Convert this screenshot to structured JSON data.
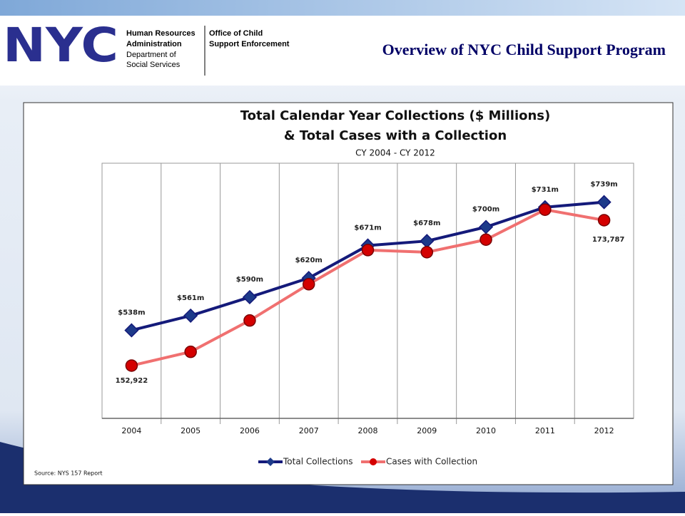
{
  "header": {
    "logo": "NYC",
    "agency": [
      "Human Resources",
      "Administration"
    ],
    "department": [
      "Department of",
      "Social Services"
    ],
    "office": [
      "Office of Child",
      "Support Enforcement"
    ],
    "title": "Overview of NYC Child Support Program"
  },
  "chart_data": {
    "type": "line",
    "title": [
      "Total Calendar Year Collections ($ Millions)",
      "& Total Cases with a Collection"
    ],
    "subtitle": "CY 2004  - CY 2012",
    "categories": [
      "2004",
      "2005",
      "2006",
      "2007",
      "2008",
      "2009",
      "2010",
      "2011",
      "2012"
    ],
    "series": [
      {
        "name": "Total Collections",
        "color": "#141a7a",
        "marker": "diamond",
        "marker_color": "#1d3a8a",
        "values": [
          538,
          561,
          590,
          620,
          671,
          678,
          700,
          731,
          739
        ],
        "value_labels": [
          "$538m",
          "$561m",
          "$590m",
          "$620m",
          "$671m",
          "$678m",
          "$700m",
          "$731m",
          "$739m"
        ]
      },
      {
        "name": "Cases with Collection",
        "color": "#f07070",
        "marker": "circle",
        "marker_color": "#d40000",
        "axis": "y2",
        "values": [
          152922,
          154900,
          159400,
          164600,
          169500,
          169200,
          171000,
          175300,
          173787
        ],
        "value_labels": [
          "152,922",
          null,
          null,
          null,
          null,
          null,
          null,
          null,
          "173,787"
        ]
      }
    ],
    "ylim": [
      400,
      800
    ],
    "y2lim": [
      145350,
      181970
    ],
    "legend": "bottom",
    "source": "Source: NYS 157 Report"
  }
}
